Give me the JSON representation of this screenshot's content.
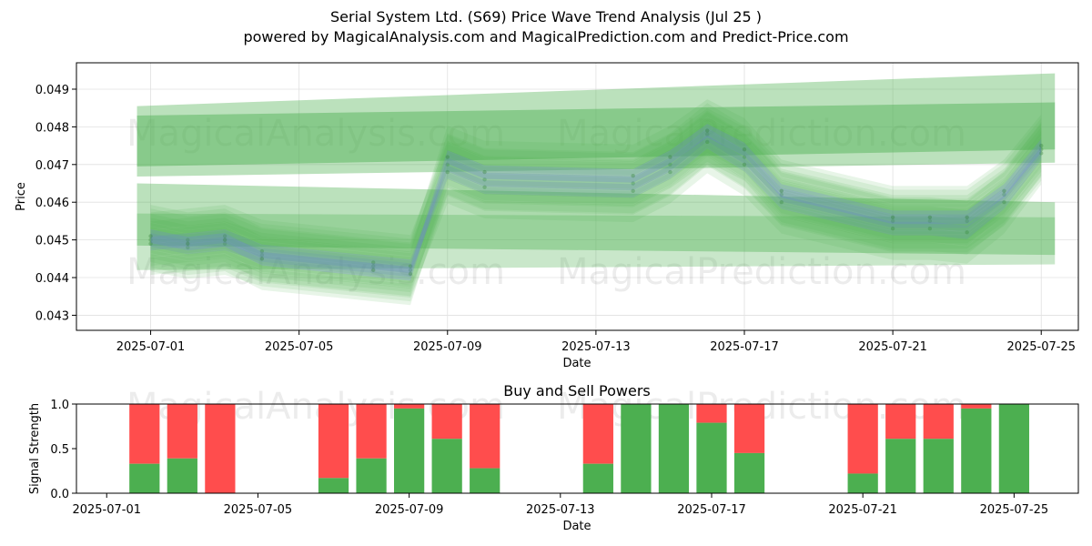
{
  "header": {
    "title": "Serial System Ltd. (S69) Price Wave Trend Analysis (Jul 25 )",
    "subtitle": "powered by MagicalAnalysis.com and MagicalPrediction.com and Predict-Price.com"
  },
  "watermarks": [
    "MagicalAnalysis.com",
    "MagicalPrediction.com"
  ],
  "colors": {
    "band": "#4caf50",
    "wave": "#7070ff",
    "buy": "#4caf50",
    "sell": "#ff4d4d",
    "grid": "#e0e0e0"
  },
  "chart_data": [
    {
      "type": "area",
      "title": "",
      "xlabel": "Date",
      "ylabel": "Price",
      "xlim": [
        "2025-06-29",
        "2025-07-26"
      ],
      "ylim": [
        0.0426,
        0.0497
      ],
      "x_ticks": [
        "2025-07-01",
        "2025-07-05",
        "2025-07-09",
        "2025-07-13",
        "2025-07-17",
        "2025-07-21",
        "2025-07-25"
      ],
      "y_ticks": [
        "0.043",
        "0.044",
        "0.045",
        "0.046",
        "0.047",
        "0.048",
        "0.049"
      ],
      "grid": true,
      "dates": [
        "2025-07-01",
        "2025-07-02",
        "2025-07-03",
        "2025-07-04",
        "2025-07-07",
        "2025-07-08",
        "2025-07-09",
        "2025-07-10",
        "2025-07-14",
        "2025-07-15",
        "2025-07-16",
        "2025-07-17",
        "2025-07-18",
        "2025-07-21",
        "2025-07-22",
        "2025-07-23",
        "2025-07-24",
        "2025-07-25"
      ],
      "series": [
        {
          "values": [
            0.045,
            0.0448,
            0.0449,
            0.0446,
            0.0443,
            0.0442,
            0.047,
            0.0466,
            0.0465,
            0.047,
            0.0478,
            0.0472,
            0.0462,
            0.0455,
            0.0455,
            0.0455,
            0.0462,
            0.0474
          ]
        },
        {
          "values": [
            0.0449,
            0.045,
            0.0451,
            0.0447,
            0.0444,
            0.0443,
            0.0468,
            0.0464,
            0.0463,
            0.0468,
            0.0476,
            0.047,
            0.046,
            0.0453,
            0.0453,
            0.0452,
            0.046,
            0.0473
          ]
        },
        {
          "values": [
            0.0451,
            0.0449,
            0.045,
            0.0445,
            0.0442,
            0.0441,
            0.0472,
            0.0468,
            0.0467,
            0.0472,
            0.0479,
            0.0474,
            0.0463,
            0.0456,
            0.0456,
            0.0456,
            0.0463,
            0.0475
          ]
        }
      ]
    },
    {
      "type": "bar",
      "title": "Buy and Sell Powers",
      "xlabel": "Date",
      "ylabel": "Signal Strength",
      "ylim": [
        0,
        1.0
      ],
      "y_ticks": [
        "0.0",
        "0.5",
        "1.0"
      ],
      "x_ticks": [
        "2025-07-01",
        "2025-07-05",
        "2025-07-09",
        "2025-07-13",
        "2025-07-17",
        "2025-07-21",
        "2025-07-25"
      ],
      "categories": [
        "2025-07-02",
        "2025-07-03",
        "2025-07-04",
        "2025-07-07",
        "2025-07-08",
        "2025-07-09",
        "2025-07-10",
        "2025-07-11",
        "2025-07-14",
        "2025-07-15",
        "2025-07-16",
        "2025-07-17",
        "2025-07-18",
        "2025-07-21",
        "2025-07-22",
        "2025-07-23",
        "2025-07-24",
        "2025-07-25"
      ],
      "series": [
        {
          "name": "Buy",
          "values": [
            0.33,
            0.39,
            0.0,
            0.17,
            0.39,
            0.95,
            0.61,
            0.28,
            0.33,
            1.0,
            1.0,
            0.79,
            0.45,
            0.22,
            0.61,
            0.61,
            0.95,
            1.0
          ]
        },
        {
          "name": "Sell",
          "values": [
            0.67,
            0.61,
            1.0,
            0.83,
            0.61,
            0.05,
            0.39,
            0.72,
            0.67,
            0.0,
            0.0,
            0.21,
            0.55,
            0.78,
            0.39,
            0.39,
            0.05,
            0.0
          ]
        }
      ]
    }
  ]
}
